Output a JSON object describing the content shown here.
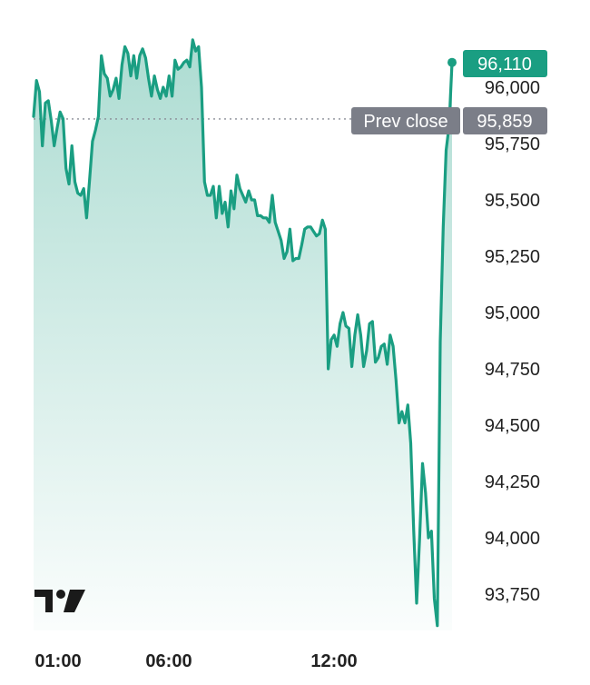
{
  "chart_data": {
    "type": "area",
    "x_ticks": [
      "01:00",
      "06:00",
      "12:00"
    ],
    "y_ticks": [
      "93,750",
      "94,000",
      "94,250",
      "94,500",
      "94,750",
      "95,000",
      "95,250",
      "95,500",
      "95,750",
      "96,000"
    ],
    "ylim": [
      93580,
      96240
    ],
    "grid": false,
    "series": [
      {
        "color": "#1a9e82",
        "y": [
          95870,
          96030,
          95980,
          95740,
          95930,
          95940,
          95850,
          95740,
          95820,
          95890,
          95860,
          95640,
          95570,
          95740,
          95580,
          95530,
          95520,
          95550,
          95420,
          95590,
          95760,
          95810,
          95870,
          96140,
          96060,
          96040,
          95960,
          95990,
          96040,
          95950,
          96100,
          96180,
          96150,
          96050,
          96140,
          96040,
          96140,
          96170,
          96130,
          96040,
          95960,
          96050,
          95990,
          95950,
          96000,
          95960,
          96050,
          95960,
          96120,
          96080,
          96090,
          96110,
          96120,
          96090,
          96210,
          96160,
          96180,
          96000,
          95580,
          95520,
          95520,
          95560,
          95420,
          95560,
          95440,
          95490,
          95380,
          95540,
          95460,
          95610,
          95550,
          95520,
          95490,
          95540,
          95500,
          95500,
          95430,
          95430,
          95420,
          95420,
          95400,
          95520,
          95400,
          95360,
          95320,
          95240,
          95270,
          95370,
          95230,
          95240,
          95240,
          95300,
          95370,
          95380,
          95380,
          95360,
          95340,
          95350,
          95410,
          95370,
          94750,
          94880,
          94900,
          94850,
          94950,
          95000,
          94940,
          94930,
          94760,
          94900,
          94990,
          94900,
          94760,
          94830,
          94950,
          94960,
          94780,
          94800,
          94850,
          94860,
          94770,
          94900,
          94850,
          94700,
          94510,
          94560,
          94510,
          94590,
          94420,
          94030,
          93710,
          94000,
          94330,
          94200,
          94000,
          94030,
          93730,
          93610,
          94870,
          95380,
          95720,
          95830,
          96110
        ],
        "x_domain": [
          0,
          142
        ]
      }
    ],
    "prev_close": {
      "label": "Prev close",
      "value_label": "95,859",
      "value": 95859
    },
    "last_value": {
      "label": "96,110",
      "value": 96110
    }
  },
  "colors": {
    "line": "#1a9e82",
    "last_tag": "#1a9e82",
    "prev_tag": "#7b7e88",
    "text": "#222222"
  },
  "logo": {
    "name": "tradingview-logo-icon"
  }
}
